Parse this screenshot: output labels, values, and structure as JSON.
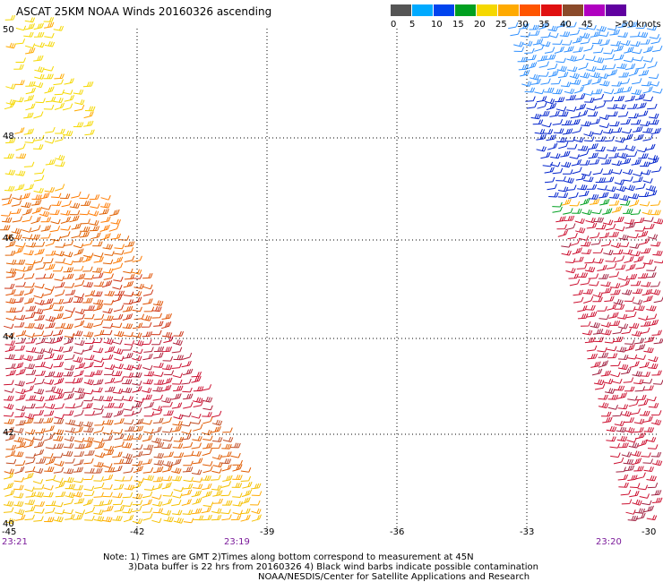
{
  "title": "ASCAT 25KM NOAA Winds 20160326 ascending",
  "legend": {
    "labels": [
      "0",
      "5",
      "10",
      "15",
      "20",
      "25",
      "30",
      "35",
      "40",
      "45",
      ">50 knots"
    ],
    "colors": [
      "#555555",
      "#00aaff",
      "#0044ee",
      "#00a020",
      "#f5d800",
      "#ffaa00",
      "#ff5500",
      "#e01010",
      "#8a4a2a",
      "#b000c0",
      "#6000a0"
    ]
  },
  "axes": {
    "lat_labels": [
      "50",
      "48",
      "46",
      "44",
      "42",
      "40"
    ],
    "lon_labels": [
      "-45",
      "-42",
      "-39",
      "-36",
      "-33",
      "-30"
    ]
  },
  "times": [
    "23:21",
    "23:19",
    "23:20"
  ],
  "notes": [
    "Note: 1) Times are GMT 2)Times along bottom correspond to measurement at 45N",
    "3)Data buffer is 22 hrs from 20160326 4) Black wind barbs indicate possible contamination",
    "NOAA/NESDIS/Center for Satellite Applications and Research"
  ]
}
